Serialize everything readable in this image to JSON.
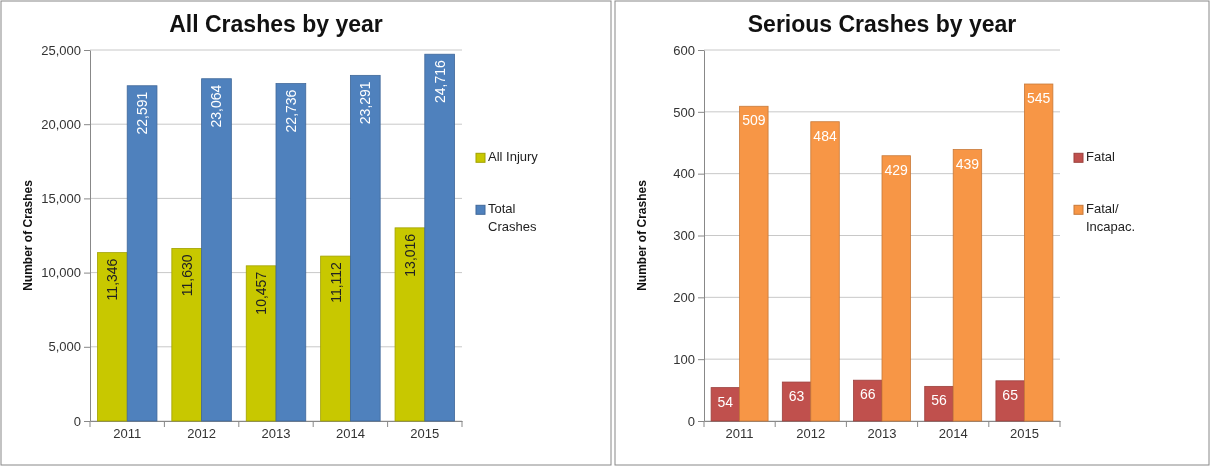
{
  "chart_data": [
    {
      "type": "bar",
      "title": "All Crashes by year",
      "ylabel": "Number of Crashes",
      "categories": [
        "2011",
        "2012",
        "2013",
        "2014",
        "2015"
      ],
      "series": [
        {
          "name": "All Injury",
          "color": "#c8c800",
          "values": [
            11346,
            11630,
            10457,
            11112,
            13016
          ],
          "value_labels": [
            "11,346",
            "11,630",
            "10,457",
            "11,112",
            "13,016"
          ]
        },
        {
          "name": "Total Crashes",
          "color": "#4f81bd",
          "values": [
            22591,
            23064,
            22736,
            23291,
            24716
          ],
          "value_labels": [
            "22,591",
            "23,064",
            "22,736",
            "23,291",
            "24,716"
          ]
        }
      ],
      "ylim": [
        0,
        25000
      ],
      "yticks": [
        {
          "value": 0,
          "label": "0"
        },
        {
          "value": 5000,
          "label": "5,000"
        },
        {
          "value": 10000,
          "label": "10,000"
        },
        {
          "value": 15000,
          "label": "15,000"
        },
        {
          "value": 20000,
          "label": "20,000"
        },
        {
          "value": 25000,
          "label": "25,000"
        }
      ],
      "grid": "y",
      "legend": "right"
    },
    {
      "type": "bar",
      "title": "Serious Crashes by year",
      "ylabel": "Number of Crashes",
      "categories": [
        "2011",
        "2012",
        "2013",
        "2014",
        "2015"
      ],
      "series": [
        {
          "name": "Fatal",
          "color": "#c0504d",
          "values": [
            54,
            63,
            66,
            56,
            65
          ]
        },
        {
          "name": "Fatal/ Incapac.",
          "color": "#f79646",
          "values": [
            509,
            484,
            429,
            439,
            545
          ]
        }
      ],
      "ylim": [
        0,
        600
      ],
      "yticks": [
        0,
        100,
        200,
        300,
        400,
        500,
        600
      ],
      "grid": "y",
      "legend": "right",
      "data_labels": true
    }
  ]
}
